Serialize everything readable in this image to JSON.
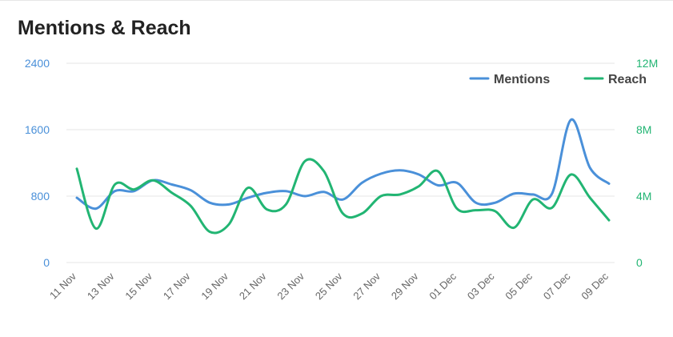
{
  "title": "Mentions & Reach",
  "colors": {
    "mentions": "#4a90d9",
    "reach": "#22b573",
    "grid": "#e6e6e6",
    "tick": "#666666"
  },
  "chart_data": {
    "type": "line",
    "title": "Mentions & Reach",
    "x": [
      "11 Nov",
      "12 Nov",
      "13 Nov",
      "14 Nov",
      "15 Nov",
      "16 Nov",
      "17 Nov",
      "18 Nov",
      "19 Nov",
      "20 Nov",
      "21 Nov",
      "22 Nov",
      "23 Nov",
      "24 Nov",
      "25 Nov",
      "26 Nov",
      "27 Nov",
      "28 Nov",
      "29 Nov",
      "30 Nov",
      "01 Dec",
      "02 Dec",
      "03 Dec",
      "04 Dec",
      "05 Dec",
      "06 Dec",
      "07 Dec",
      "08 Dec",
      "09 Dec"
    ],
    "x_tick_labels": [
      "11 Nov",
      "13 Nov",
      "15 Nov",
      "17 Nov",
      "19 Nov",
      "21 Nov",
      "23 Nov",
      "25 Nov",
      "27 Nov",
      "29 Nov",
      "01 Dec",
      "03 Dec",
      "05 Dec",
      "07 Dec",
      "09 Dec"
    ],
    "series": [
      {
        "name": "Mentions",
        "axis": "left",
        "values": [
          780,
          650,
          860,
          860,
          990,
          940,
          870,
          720,
          700,
          780,
          840,
          860,
          800,
          850,
          760,
          960,
          1070,
          1110,
          1060,
          930,
          960,
          720,
          720,
          830,
          820,
          830,
          1720,
          1140,
          950
        ]
      },
      {
        "name": "Reach",
        "axis": "right",
        "values": [
          5650000,
          2050000,
          4700000,
          4400000,
          4950000,
          4200000,
          3400000,
          1850000,
          2300000,
          4500000,
          3200000,
          3500000,
          6100000,
          5500000,
          2950000,
          2950000,
          4000000,
          4100000,
          4600000,
          5500000,
          3250000,
          3150000,
          3100000,
          2100000,
          3800000,
          3300000,
          5300000,
          3900000,
          2550000
        ]
      }
    ],
    "y_left": {
      "min": 0,
      "max": 2400,
      "ticks": [
        0,
        800,
        1600,
        2400
      ]
    },
    "y_right": {
      "min": 0,
      "max": 12000000,
      "ticks": [
        "0",
        "4M",
        "8M",
        "12M"
      ]
    },
    "grid": true,
    "legend": "top-right"
  }
}
